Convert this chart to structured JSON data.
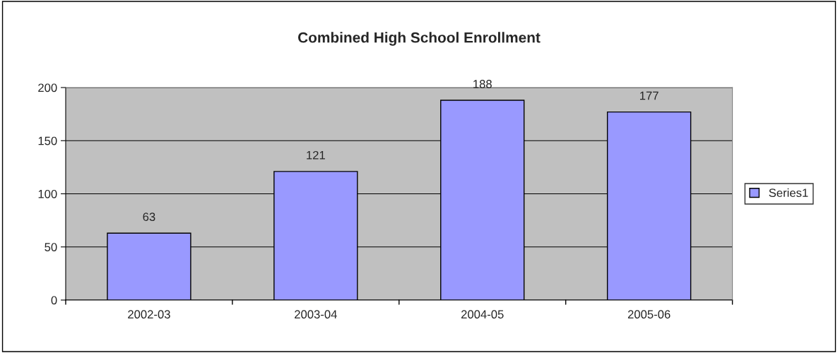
{
  "chart_data": {
    "type": "bar",
    "title": "Combined High School Enrollment",
    "categories": [
      "2002-03",
      "2003-04",
      "2004-05",
      "2005-06"
    ],
    "series": [
      {
        "name": "Series1",
        "color": "#9999ff",
        "values": [
          63,
          121,
          188,
          177
        ]
      }
    ],
    "ylim": [
      0,
      200
    ],
    "yticks": [
      0,
      50,
      100,
      150,
      200
    ],
    "grid": "y",
    "legend": "right",
    "data_labels": true
  }
}
